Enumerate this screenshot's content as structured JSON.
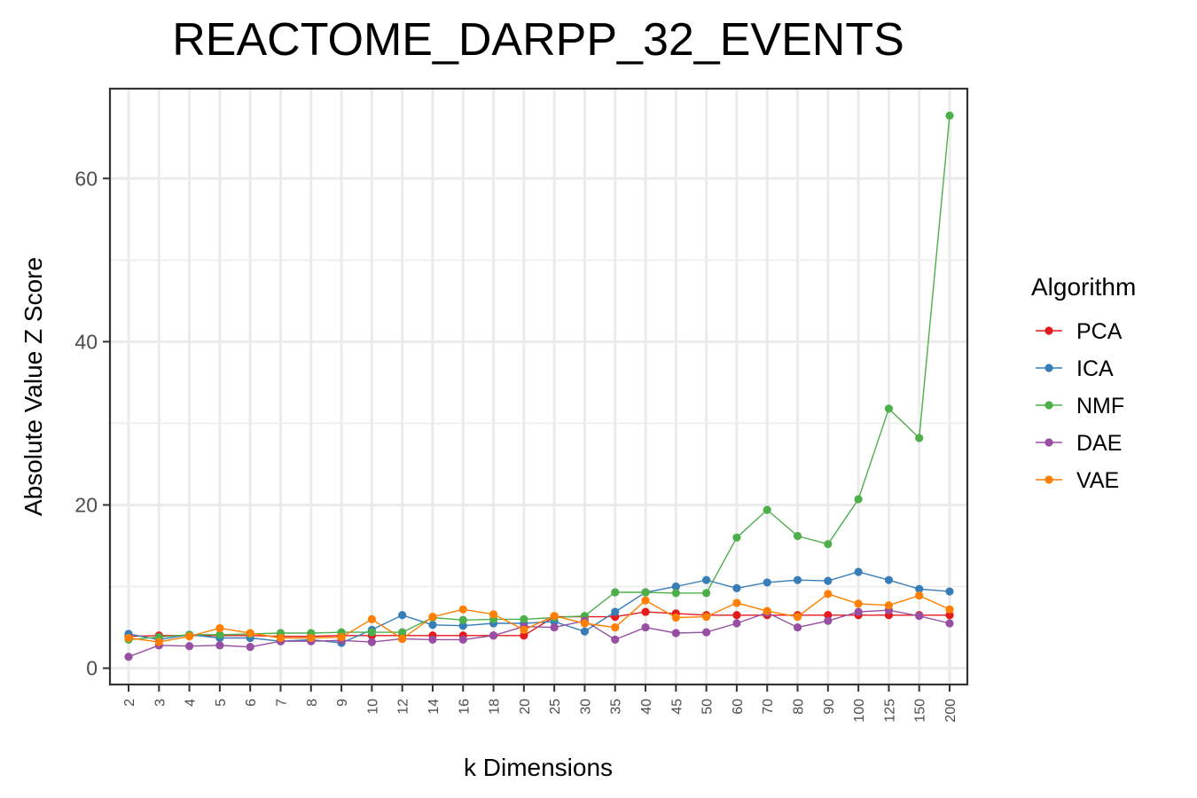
{
  "chart_data": {
    "type": "line",
    "title": "REACTOME_DARPP_32_EVENTS",
    "xlabel": "k Dimensions",
    "ylabel": "Absolute Value Z Score",
    "categories": [
      "2",
      "3",
      "4",
      "5",
      "6",
      "7",
      "8",
      "9",
      "10",
      "12",
      "14",
      "16",
      "18",
      "20",
      "25",
      "30",
      "35",
      "40",
      "45",
      "50",
      "60",
      "70",
      "80",
      "90",
      "100",
      "125",
      "150",
      "200"
    ],
    "ylim": [
      -2,
      71
    ],
    "yticks": [
      0,
      20,
      40,
      60
    ],
    "grid": true,
    "legend": {
      "title": "Algorithm",
      "position": "right"
    },
    "series": [
      {
        "name": "PCA",
        "color": "#e41a1c",
        "values": [
          3.9,
          4.0,
          4.0,
          4.0,
          4.0,
          3.9,
          3.9,
          4.0,
          4.0,
          4.0,
          4.0,
          4.0,
          4.0,
          4.0,
          6.3,
          6.3,
          6.3,
          6.9,
          6.7,
          6.5,
          6.5,
          6.5,
          6.5,
          6.5,
          6.5,
          6.5,
          6.5,
          6.5
        ]
      },
      {
        "name": "ICA",
        "color": "#377eb8",
        "values": [
          4.2,
          3.5,
          4.1,
          3.7,
          3.7,
          3.3,
          3.5,
          3.1,
          4.7,
          6.5,
          5.3,
          5.2,
          5.5,
          5.5,
          5.7,
          4.5,
          6.9,
          9.3,
          10.0,
          10.8,
          9.8,
          10.5,
          10.8,
          10.7,
          11.8,
          10.8,
          9.7,
          9.4
        ]
      },
      {
        "name": "NMF",
        "color": "#4daf4a",
        "values": [
          3.5,
          3.8,
          4.1,
          4.1,
          4.2,
          4.3,
          4.3,
          4.4,
          4.4,
          4.4,
          6.2,
          5.9,
          6.0,
          6.0,
          6.2,
          6.4,
          9.3,
          9.3,
          9.2,
          9.2,
          16.0,
          19.4,
          16.2,
          15.2,
          20.7,
          31.8,
          28.2,
          67.7
        ]
      },
      {
        "name": "DAE",
        "color": "#984ea3",
        "values": [
          1.4,
          2.8,
          2.7,
          2.8,
          2.6,
          3.3,
          3.3,
          3.4,
          3.2,
          3.6,
          3.5,
          3.5,
          4.0,
          5.1,
          5.0,
          5.8,
          3.5,
          5.0,
          4.3,
          4.4,
          5.5,
          6.8,
          5.0,
          5.8,
          6.9,
          7.1,
          6.4,
          5.5
        ]
      },
      {
        "name": "VAE",
        "color": "#ff7f00",
        "values": [
          3.7,
          3.2,
          3.9,
          4.9,
          4.3,
          3.7,
          3.7,
          3.8,
          6.0,
          3.6,
          6.3,
          7.2,
          6.6,
          4.7,
          6.4,
          5.5,
          5.0,
          8.3,
          6.2,
          6.3,
          8.0,
          7.0,
          6.3,
          9.1,
          7.9,
          7.7,
          8.9,
          7.2
        ]
      }
    ]
  }
}
